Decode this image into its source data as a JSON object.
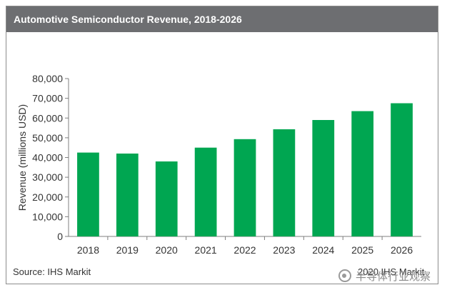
{
  "header": {
    "title": "Automotive Semiconductor Revenue, 2018-2026"
  },
  "footer": {
    "source": "Source: IHS Markit",
    "copyright": "2020 IHS Markit"
  },
  "watermark": {
    "text": "半导体行业观察"
  },
  "chart_data": {
    "type": "bar",
    "title": "Automotive Semiconductor Revenue, 2018-2026",
    "xlabel": "",
    "ylabel": "Revenue (millions USD)",
    "categories": [
      "2018",
      "2019",
      "2020",
      "2021",
      "2022",
      "2023",
      "2024",
      "2025",
      "2026"
    ],
    "values": [
      42500,
      42000,
      38000,
      45000,
      49300,
      54300,
      59000,
      63500,
      67500
    ],
    "ylim": [
      0,
      80000
    ],
    "yticks": [
      0,
      10000,
      20000,
      30000,
      40000,
      50000,
      60000,
      70000,
      80000
    ],
    "ytick_labels": [
      "0",
      "10,000",
      "20,000",
      "30,000",
      "40,000",
      "50,000",
      "60,000",
      "70,000",
      "80,000"
    ],
    "bar_color": "#00a651",
    "grid": false,
    "legend": "none"
  }
}
